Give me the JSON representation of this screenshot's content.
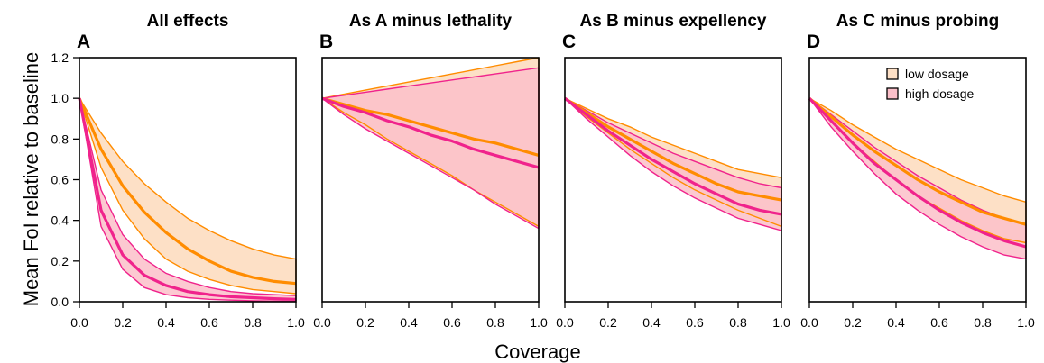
{
  "figure": {
    "ylabel": "Mean FoI relative to baseline",
    "xlabel": "Coverage",
    "colors": {
      "low": "#ff8c00",
      "high": "#f0238c",
      "low_fill": "#fde0c6",
      "high_fill": "#fbbfc9"
    }
  },
  "legend": {
    "low": "low dosage",
    "high": "high dosage",
    "placement": "top-right of panel D"
  },
  "chart_data": [
    {
      "type": "area",
      "letter": "A",
      "title": "All effects",
      "xlim": [
        0,
        1
      ],
      "ylim": [
        0,
        1.2
      ],
      "xticks": [
        "0.0",
        "0.2",
        "0.4",
        "0.6",
        "0.8",
        "1.0"
      ],
      "yticks": [
        "0.0",
        "0.2",
        "0.4",
        "0.6",
        "0.8",
        "1.0",
        "1.2"
      ],
      "x": [
        0,
        0.1,
        0.2,
        0.3,
        0.4,
        0.5,
        0.6,
        0.7,
        0.8,
        0.9,
        1.0
      ],
      "series": [
        {
          "name": "low dosage",
          "upper": [
            1.0,
            0.83,
            0.69,
            0.58,
            0.49,
            0.41,
            0.35,
            0.3,
            0.26,
            0.23,
            0.21
          ],
          "mid": [
            1.0,
            0.75,
            0.57,
            0.44,
            0.34,
            0.26,
            0.2,
            0.15,
            0.12,
            0.1,
            0.09
          ],
          "lower": [
            1.0,
            0.66,
            0.45,
            0.31,
            0.21,
            0.15,
            0.11,
            0.08,
            0.06,
            0.05,
            0.04
          ]
        },
        {
          "name": "high dosage",
          "upper": [
            1.0,
            0.55,
            0.33,
            0.21,
            0.14,
            0.1,
            0.07,
            0.05,
            0.04,
            0.035,
            0.03
          ],
          "mid": [
            1.0,
            0.45,
            0.23,
            0.13,
            0.08,
            0.05,
            0.035,
            0.025,
            0.02,
            0.015,
            0.012
          ],
          "lower": [
            1.0,
            0.37,
            0.16,
            0.07,
            0.035,
            0.02,
            0.012,
            0.008,
            0.005,
            0.003,
            0.002
          ]
        }
      ]
    },
    {
      "type": "area",
      "letter": "B",
      "title": "As A minus lethality",
      "xlim": [
        0,
        1
      ],
      "ylim": [
        0,
        1.2
      ],
      "xticks": [
        "0.0",
        "0.2",
        "0.4",
        "0.6",
        "0.8",
        "1.0"
      ],
      "yticks": [
        "0.0",
        "0.2",
        "0.4",
        "0.6",
        "0.8",
        "1.0",
        "1.2"
      ],
      "x": [
        0,
        0.1,
        0.2,
        0.3,
        0.4,
        0.5,
        0.6,
        0.7,
        0.8,
        0.9,
        1.0
      ],
      "series": [
        {
          "name": "low dosage",
          "upper": [
            1.0,
            1.02,
            1.04,
            1.06,
            1.08,
            1.1,
            1.12,
            1.14,
            1.16,
            1.18,
            1.2
          ],
          "mid": [
            1.0,
            0.97,
            0.94,
            0.92,
            0.89,
            0.86,
            0.83,
            0.8,
            0.78,
            0.75,
            0.72
          ],
          "lower": [
            1.0,
            0.93,
            0.87,
            0.8,
            0.74,
            0.68,
            0.62,
            0.55,
            0.49,
            0.43,
            0.37
          ]
        },
        {
          "name": "high dosage",
          "upper": [
            1.0,
            1.015,
            1.03,
            1.045,
            1.06,
            1.075,
            1.09,
            1.105,
            1.12,
            1.135,
            1.15
          ],
          "mid": [
            1.0,
            0.96,
            0.93,
            0.89,
            0.86,
            0.82,
            0.79,
            0.75,
            0.72,
            0.69,
            0.66
          ],
          "lower": [
            1.0,
            0.92,
            0.85,
            0.79,
            0.73,
            0.67,
            0.61,
            0.55,
            0.48,
            0.42,
            0.36
          ]
        }
      ]
    },
    {
      "type": "area",
      "letter": "C",
      "title": "As B minus expellency",
      "xlim": [
        0,
        1
      ],
      "ylim": [
        0,
        1.2
      ],
      "xticks": [
        "0.0",
        "0.2",
        "0.4",
        "0.6",
        "0.8",
        "1.0"
      ],
      "yticks": [
        "0.0",
        "0.2",
        "0.4",
        "0.6",
        "0.8",
        "1.0",
        "1.2"
      ],
      "x": [
        0,
        0.1,
        0.2,
        0.3,
        0.4,
        0.5,
        0.6,
        0.7,
        0.8,
        0.9,
        1.0
      ],
      "series": [
        {
          "name": "low dosage",
          "upper": [
            1.0,
            0.95,
            0.9,
            0.86,
            0.81,
            0.77,
            0.73,
            0.69,
            0.65,
            0.63,
            0.61
          ],
          "mid": [
            1.0,
            0.93,
            0.86,
            0.8,
            0.74,
            0.68,
            0.63,
            0.58,
            0.54,
            0.52,
            0.5
          ],
          "lower": [
            1.0,
            0.91,
            0.83,
            0.75,
            0.68,
            0.61,
            0.55,
            0.5,
            0.45,
            0.41,
            0.37
          ]
        },
        {
          "name": "high dosage",
          "upper": [
            1.0,
            0.94,
            0.88,
            0.83,
            0.78,
            0.73,
            0.69,
            0.65,
            0.61,
            0.58,
            0.56
          ],
          "mid": [
            1.0,
            0.92,
            0.84,
            0.77,
            0.7,
            0.64,
            0.58,
            0.53,
            0.48,
            0.45,
            0.43
          ],
          "lower": [
            1.0,
            0.9,
            0.81,
            0.72,
            0.64,
            0.57,
            0.51,
            0.46,
            0.41,
            0.38,
            0.35
          ]
        }
      ]
    },
    {
      "type": "area",
      "letter": "D",
      "title": "As C minus probing",
      "xlim": [
        0,
        1
      ],
      "ylim": [
        0,
        1.2
      ],
      "xticks": [
        "0.0",
        "0.2",
        "0.4",
        "0.6",
        "0.8",
        "1.0"
      ],
      "yticks": [
        "0.0",
        "0.2",
        "0.4",
        "0.6",
        "0.8",
        "1.0",
        "1.2"
      ],
      "x": [
        0,
        0.1,
        0.2,
        0.3,
        0.4,
        0.5,
        0.6,
        0.7,
        0.8,
        0.9,
        1.0
      ],
      "series": [
        {
          "name": "low dosage",
          "upper": [
            1.0,
            0.94,
            0.87,
            0.81,
            0.75,
            0.7,
            0.65,
            0.6,
            0.56,
            0.52,
            0.49
          ],
          "mid": [
            1.0,
            0.91,
            0.82,
            0.74,
            0.67,
            0.6,
            0.54,
            0.49,
            0.44,
            0.41,
            0.38
          ],
          "lower": [
            1.0,
            0.89,
            0.78,
            0.69,
            0.6,
            0.52,
            0.46,
            0.4,
            0.35,
            0.31,
            0.29
          ]
        },
        {
          "name": "high dosage",
          "upper": [
            1.0,
            0.92,
            0.84,
            0.76,
            0.69,
            0.62,
            0.56,
            0.5,
            0.45,
            0.41,
            0.38
          ],
          "mid": [
            1.0,
            0.89,
            0.78,
            0.68,
            0.6,
            0.52,
            0.45,
            0.39,
            0.34,
            0.3,
            0.27
          ],
          "lower": [
            1.0,
            0.86,
            0.74,
            0.63,
            0.53,
            0.45,
            0.38,
            0.32,
            0.27,
            0.23,
            0.21
          ]
        }
      ]
    }
  ]
}
